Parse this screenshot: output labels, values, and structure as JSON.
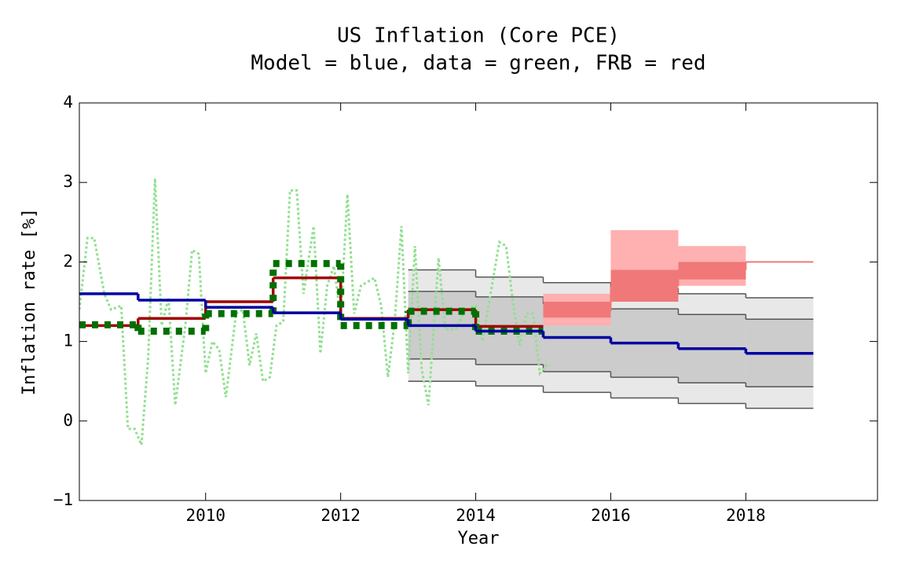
{
  "chart_data": {
    "type": "line",
    "title": "US Inflation (Core PCE)",
    "subtitle": "Model = blue, data = green, FRB = red",
    "x_label": "Year",
    "y_label": "Inflation rate [%]",
    "xlim": [
      2008.13,
      2019.95
    ],
    "ylim": [
      -1,
      4
    ],
    "xticks": [
      2010,
      2012,
      2014,
      2016,
      2018
    ],
    "yticks": [
      {
        "value": -1,
        "label": "−1"
      },
      0,
      1,
      2,
      3,
      4
    ],
    "bands": [
      {
        "color": "#e8e8e8",
        "edge": "#555555",
        "bins": [
          2013,
          2014,
          2015,
          2016,
          2017,
          2018,
          2019
        ],
        "lower": [
          0.5,
          0.44,
          0.36,
          0.29,
          0.22,
          0.16
        ],
        "upper": [
          1.9,
          1.81,
          1.74,
          1.67,
          1.6,
          1.55
        ]
      },
      {
        "color": "#cccccc",
        "edge": "#555555",
        "bins": [
          2013,
          2014,
          2015,
          2016,
          2017,
          2018,
          2019
        ],
        "lower": [
          0.78,
          0.71,
          0.62,
          0.55,
          0.48,
          0.43
        ],
        "upper": [
          1.63,
          1.56,
          1.47,
          1.41,
          1.34,
          1.28
        ]
      },
      {
        "color": "#ffb0b0",
        "bins": [
          2015,
          2016,
          2017,
          2018
        ],
        "lower": [
          1.2,
          1.5,
          1.7
        ],
        "upper": [
          1.6,
          2.4,
          2.2
        ]
      },
      {
        "color": "#f07878",
        "bins": [
          2015,
          2016,
          2017,
          2018
        ],
        "lower": [
          1.3,
          1.5,
          1.78
        ],
        "upper": [
          1.5,
          1.9,
          2.0
        ]
      }
    ],
    "monthly": {
      "color": "#90e090",
      "x": [
        2008.13,
        2008.25,
        2008.35,
        2008.5,
        2008.6,
        2008.75,
        2008.85,
        2008.95,
        2009.05,
        2009.15,
        2009.25,
        2009.35,
        2009.45,
        2009.55,
        2009.7,
        2009.8,
        2009.9,
        2010.0,
        2010.1,
        2010.2,
        2010.3,
        2010.45,
        2010.55,
        2010.65,
        2010.75,
        2010.85,
        2010.95,
        2011.05,
        2011.15,
        2011.25,
        2011.35,
        2011.45,
        2011.6,
        2011.7,
        2011.8,
        2011.9,
        2012.0,
        2012.1,
        2012.2,
        2012.3,
        2012.4,
        2012.5,
        2012.6,
        2012.7,
        2012.8,
        2012.9,
        2013.0,
        2013.1,
        2013.2,
        2013.3,
        2013.45,
        2013.55,
        2013.7,
        2013.85,
        2014.0,
        2014.1,
        2014.2,
        2014.35,
        2014.45,
        2014.55,
        2014.65,
        2014.75,
        2014.85,
        2014.95,
        2015.05,
        2015.1
      ],
      "values": [
        1.4,
        2.3,
        2.3,
        1.6,
        1.4,
        1.45,
        -0.1,
        -0.1,
        -0.3,
        0.8,
        3.05,
        1.2,
        1.55,
        0.2,
        1.2,
        2.15,
        2.1,
        0.6,
        1.0,
        0.9,
        0.3,
        1.35,
        1.4,
        0.7,
        1.1,
        0.5,
        0.55,
        1.2,
        1.25,
        2.9,
        2.9,
        1.6,
        2.45,
        0.85,
        1.7,
        1.95,
        1.3,
        2.85,
        1.35,
        1.7,
        1.75,
        1.8,
        1.45,
        0.55,
        1.25,
        2.45,
        0.6,
        2.2,
        0.65,
        0.2,
        2.05,
        1.15,
        1.15,
        1.4,
        1.45,
        1.0,
        1.5,
        2.25,
        2.2,
        1.5,
        0.95,
        1.35,
        1.35,
        0.6,
        0.7,
        0.7
      ]
    },
    "steps": [
      {
        "color": "#a00000",
        "width": 3.5,
        "bins": [
          2008.13,
          2009,
          2010,
          2011,
          2012,
          2013,
          2014,
          2015
        ],
        "values": [
          1.2,
          1.29,
          1.5,
          1.8,
          1.29,
          1.4,
          1.19
        ]
      },
      {
        "color": "#007000",
        "width": 9,
        "dash": "8 8",
        "bins": [
          2008.13,
          2009,
          2010,
          2011,
          2012,
          2013,
          2014,
          2015
        ],
        "values": [
          1.21,
          1.13,
          1.35,
          1.98,
          1.2,
          1.38,
          1.13
        ]
      },
      {
        "color": "#0000a0",
        "width": 3.5,
        "bins": [
          2008.13,
          2009,
          2010,
          2011,
          2012,
          2013,
          2014,
          2015,
          2016,
          2017,
          2018,
          2019
        ],
        "values": [
          1.6,
          1.52,
          1.43,
          1.36,
          1.28,
          1.2,
          1.13,
          1.05,
          0.98,
          0.91,
          0.85
        ]
      },
      {
        "color": "#f07878",
        "width": 2,
        "bins": [
          2015,
          2016,
          2017,
          2018,
          2019
        ],
        "values": [
          1.38,
          1.7,
          1.9,
          2.0
        ]
      }
    ]
  }
}
